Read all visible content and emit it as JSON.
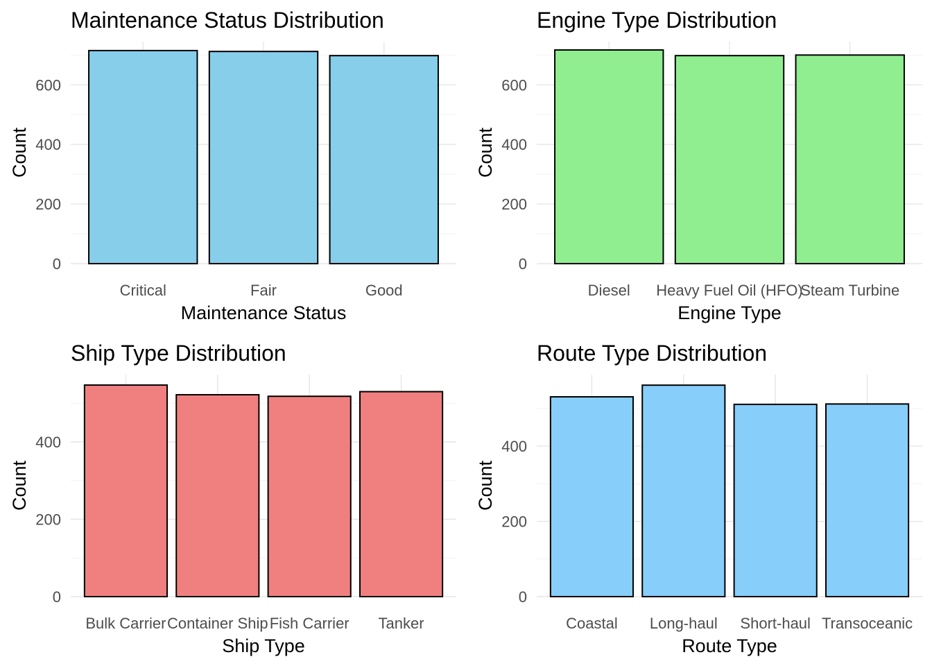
{
  "chart_data": [
    {
      "type": "bar",
      "title": "Maintenance Status Distribution",
      "xlabel": "Maintenance Status",
      "ylabel": "Count",
      "categories": [
        "Critical",
        "Fair",
        "Good"
      ],
      "values": [
        715,
        712,
        698
      ],
      "ylim": [
        0,
        745
      ],
      "yticks": [
        0,
        200,
        400,
        600
      ],
      "bar_color": "#87CEEB",
      "grid": true
    },
    {
      "type": "bar",
      "title": "Engine Type Distribution",
      "xlabel": "Engine Type",
      "ylabel": "Count",
      "categories": [
        "Diesel",
        "Heavy Fuel Oil (HFO)",
        "Steam Turbine"
      ],
      "values": [
        717,
        698,
        700
      ],
      "ylim": [
        0,
        745
      ],
      "yticks": [
        0,
        200,
        400,
        600
      ],
      "bar_color": "#90EE90",
      "grid": true
    },
    {
      "type": "bar",
      "title": "Ship Type Distribution",
      "xlabel": "Ship Type",
      "ylabel": "Count",
      "categories": [
        "Bulk Carrier",
        "Container Ship",
        "Fish Carrier",
        "Tanker"
      ],
      "values": [
        547,
        522,
        518,
        530
      ],
      "ylim": [
        0,
        574
      ],
      "yticks": [
        0,
        200,
        400
      ],
      "bar_color": "#F08080",
      "grid": true
    },
    {
      "type": "bar",
      "title": "Route Type Distribution",
      "xlabel": "Route Type",
      "ylabel": "Count",
      "categories": [
        "Coastal",
        "Long-haul",
        "Short-haul",
        "Transoceanic"
      ],
      "values": [
        531,
        562,
        511,
        512
      ],
      "ylim": [
        0,
        590
      ],
      "yticks": [
        0,
        200,
        400
      ],
      "bar_color": "#87CEFA",
      "grid": true
    }
  ]
}
